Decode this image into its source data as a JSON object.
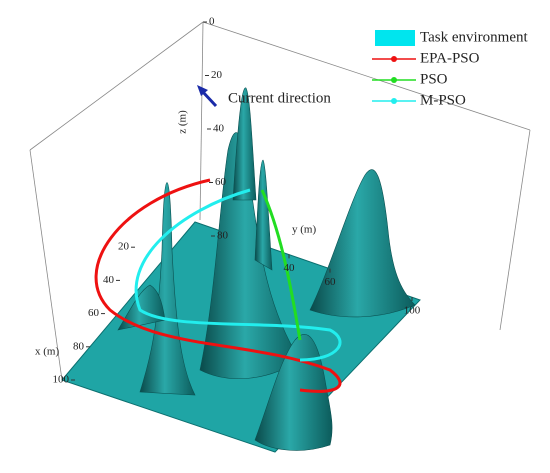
{
  "chart_data": {
    "type": "surface3d",
    "xlabel": "x (m)",
    "ylabel": "y (m)",
    "zlabel": "z (m)",
    "xlim": [
      0,
      100
    ],
    "ylim": [
      0,
      100
    ],
    "zlim": [
      0,
      80
    ],
    "xticks": [
      20,
      40,
      60,
      80,
      100
    ],
    "yticks": [
      40,
      60,
      100
    ],
    "zticks": [
      0,
      20,
      40,
      60,
      80
    ],
    "annotation": "Current direction",
    "legend": "top-right",
    "series": [
      {
        "name": "Task environment",
        "color": "#00e5ee",
        "marker": "patch"
      },
      {
        "name": "EPA-PSO",
        "color": "#ee1111",
        "marker": "line"
      },
      {
        "name": "PSO",
        "color": "#22dd22",
        "marker": "line"
      },
      {
        "name": "M-PSO",
        "color": "#22eeee",
        "marker": "line"
      }
    ]
  }
}
